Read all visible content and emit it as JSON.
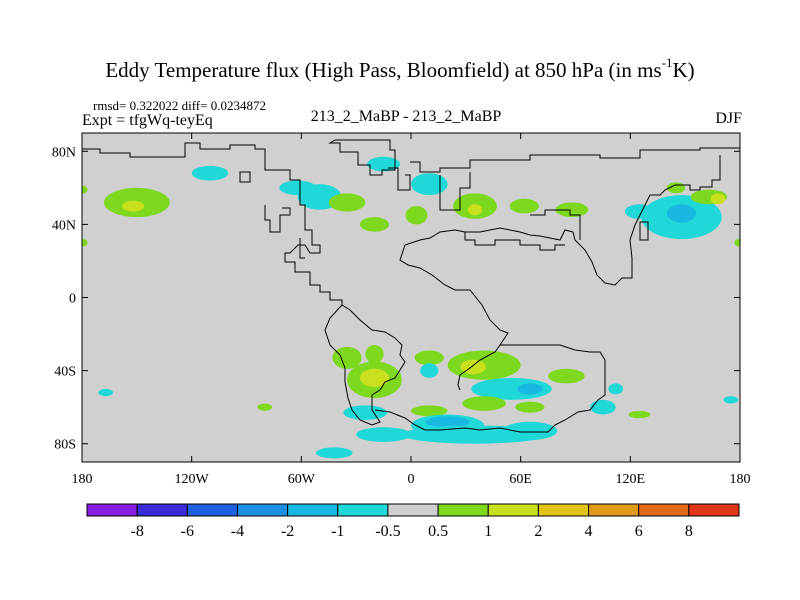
{
  "title": {
    "main": "Eddy Temperature flux (High Pass, Bloomfield) at 850 hPa (in ms",
    "sup": "-1",
    "tail": "K)"
  },
  "stats": "rmsd= 0.322022 diff= 0.0234872",
  "expt": "Expt = tfgWq-teyEq",
  "case": "213_2_MaBP - 213_2_MaBP",
  "season": "DJF",
  "colors": {
    "background_field": "#d0d0d0",
    "coastline": "#000000"
  },
  "chart_data": {
    "type": "heatmap",
    "projection": "cylindrical equidistant",
    "x_ticks": [
      "180",
      "120W",
      "60W",
      "0",
      "60E",
      "120E",
      "180"
    ],
    "x_tick_values": [
      -180,
      -120,
      -60,
      0,
      60,
      120,
      180
    ],
    "y_ticks": [
      "80N",
      "40N",
      "0",
      "40S",
      "80S"
    ],
    "y_tick_values": [
      80,
      40,
      0,
      -40,
      -80
    ],
    "xlim": [
      -180,
      180
    ],
    "ylim": [
      -90,
      90
    ],
    "colorbar": {
      "labels": [
        "-8",
        "-6",
        "-4",
        "-2",
        "-1",
        "-0.5",
        "0.5",
        "1",
        "2",
        "4",
        "6",
        "8"
      ],
      "colors": [
        "#8a1ee0",
        "#3a2ad8",
        "#1e5fe0",
        "#1e8fe0",
        "#18b8e0",
        "#20d8d8",
        "#d0d0d0",
        "#7ed81e",
        "#c8e01e",
        "#e0c418",
        "#e09a18",
        "#e06a18",
        "#e0361a"
      ]
    },
    "blobs": [
      {
        "lon": -150,
        "lat": 52,
        "rlon": 18,
        "rlat": 8,
        "level": 0.8
      },
      {
        "lon": -152,
        "lat": 50,
        "rlon": 6,
        "rlat": 3,
        "level": 1.5
      },
      {
        "lon": -110,
        "lat": 68,
        "rlon": 10,
        "rlat": 4,
        "level": -0.8
      },
      {
        "lon": -62,
        "lat": 60,
        "rlon": 10,
        "rlat": 4,
        "level": -0.8
      },
      {
        "lon": -15,
        "lat": 73,
        "rlon": 9,
        "rlat": 4,
        "level": -0.8
      },
      {
        "lon": -50,
        "lat": 55,
        "rlon": 12,
        "rlat": 7,
        "level": -0.8
      },
      {
        "lon": -35,
        "lat": 52,
        "rlon": 10,
        "rlat": 5,
        "level": 0.8
      },
      {
        "lon": -20,
        "lat": 40,
        "rlon": 8,
        "rlat": 4,
        "level": 0.8
      },
      {
        "lon": 3,
        "lat": 45,
        "rlon": 6,
        "rlat": 5,
        "level": 0.8
      },
      {
        "lon": 10,
        "lat": 62,
        "rlon": 10,
        "rlat": 6,
        "level": -0.8
      },
      {
        "lon": 35,
        "lat": 50,
        "rlon": 12,
        "rlat": 7,
        "level": 0.8
      },
      {
        "lon": 35,
        "lat": 48,
        "rlon": 4,
        "rlat": 3,
        "level": 1.5
      },
      {
        "lon": 62,
        "lat": 50,
        "rlon": 8,
        "rlat": 4,
        "level": 0.8
      },
      {
        "lon": 88,
        "lat": 48,
        "rlon": 9,
        "rlat": 4,
        "level": 0.8
      },
      {
        "lon": 125,
        "lat": 47,
        "rlon": 8,
        "rlat": 4,
        "level": -0.8
      },
      {
        "lon": 148,
        "lat": 44,
        "rlon": 22,
        "rlat": 12,
        "level": -0.8
      },
      {
        "lon": 148,
        "lat": 46,
        "rlon": 8,
        "rlat": 5,
        "level": -1.5
      },
      {
        "lon": 163,
        "lat": 55,
        "rlon": 10,
        "rlat": 4,
        "level": 0.8
      },
      {
        "lon": 168,
        "lat": 54,
        "rlon": 4,
        "rlat": 3,
        "level": 1.5
      },
      {
        "lon": 145,
        "lat": 60,
        "rlon": 5,
        "rlat": 3,
        "level": 0.8
      },
      {
        "lon": -35,
        "lat": -33,
        "rlon": 8,
        "rlat": 6,
        "level": 0.8
      },
      {
        "lon": -20,
        "lat": -31,
        "rlon": 5,
        "rlat": 5,
        "level": 0.8
      },
      {
        "lon": -20,
        "lat": -45,
        "rlon": 15,
        "rlat": 10,
        "level": 0.8
      },
      {
        "lon": -20,
        "lat": -44,
        "rlon": 8,
        "rlat": 5,
        "level": 1.5
      },
      {
        "lon": 10,
        "lat": -33,
        "rlon": 8,
        "rlat": 4,
        "level": 0.8
      },
      {
        "lon": 10,
        "lat": -40,
        "rlon": 5,
        "rlat": 4,
        "level": -0.8
      },
      {
        "lon": 40,
        "lat": -37,
        "rlon": 20,
        "rlat": 8,
        "level": 0.8
      },
      {
        "lon": 34,
        "lat": -38,
        "rlon": 7,
        "rlat": 4,
        "level": 1.5
      },
      {
        "lon": 55,
        "lat": -50,
        "rlon": 22,
        "rlat": 6,
        "level": -0.8
      },
      {
        "lon": 65,
        "lat": -50,
        "rlon": 7,
        "rlat": 3,
        "level": -1.5
      },
      {
        "lon": 85,
        "lat": -43,
        "rlon": 10,
        "rlat": 4,
        "level": 0.8
      },
      {
        "lon": 40,
        "lat": -58,
        "rlon": 12,
        "rlat": 4,
        "level": 0.8
      },
      {
        "lon": 65,
        "lat": -60,
        "rlon": 8,
        "rlat": 3,
        "level": 0.8
      },
      {
        "lon": 10,
        "lat": -62,
        "rlon": 10,
        "rlat": 3,
        "level": 0.8
      },
      {
        "lon": -25,
        "lat": -63,
        "rlon": 12,
        "rlat": 4,
        "level": -0.8
      },
      {
        "lon": 20,
        "lat": -70,
        "rlon": 20,
        "rlat": 6,
        "level": -0.8
      },
      {
        "lon": 20,
        "lat": -68,
        "rlon": 12,
        "rlat": 3,
        "level": -1.5
      },
      {
        "lon": 65,
        "lat": -73,
        "rlon": 15,
        "rlat": 5,
        "level": -0.8
      },
      {
        "lon": 35,
        "lat": -75,
        "rlon": 40,
        "rlat": 5,
        "level": -0.8
      },
      {
        "lon": -15,
        "lat": -75,
        "rlon": 15,
        "rlat": 4,
        "level": -0.8
      },
      {
        "lon": 105,
        "lat": -60,
        "rlon": 7,
        "rlat": 4,
        "level": -0.8
      },
      {
        "lon": 112,
        "lat": -50,
        "rlon": 4,
        "rlat": 3,
        "level": -0.8
      },
      {
        "lon": 125,
        "lat": -64,
        "rlon": 6,
        "rlat": 2,
        "level": 0.8
      },
      {
        "lon": -167,
        "lat": -52,
        "rlon": 4,
        "rlat": 2,
        "level": -0.8
      },
      {
        "lon": -42,
        "lat": -85,
        "rlon": 10,
        "rlat": 3,
        "level": -0.8
      },
      {
        "lon": -80,
        "lat": -60,
        "rlon": 4,
        "rlat": 2,
        "level": 0.8
      },
      {
        "lon": 175,
        "lat": -56,
        "rlon": 4,
        "rlat": 2,
        "level": -0.8
      },
      {
        "lon": -179,
        "lat": 59,
        "rlon": 2,
        "rlat": 2,
        "level": 0.8
      },
      {
        "lon": -179,
        "lat": 30,
        "rlon": 2,
        "rlat": 2,
        "level": 0.8
      },
      {
        "lon": 179,
        "lat": 30,
        "rlon": 2,
        "rlat": 2,
        "level": 0.8
      }
    ]
  }
}
